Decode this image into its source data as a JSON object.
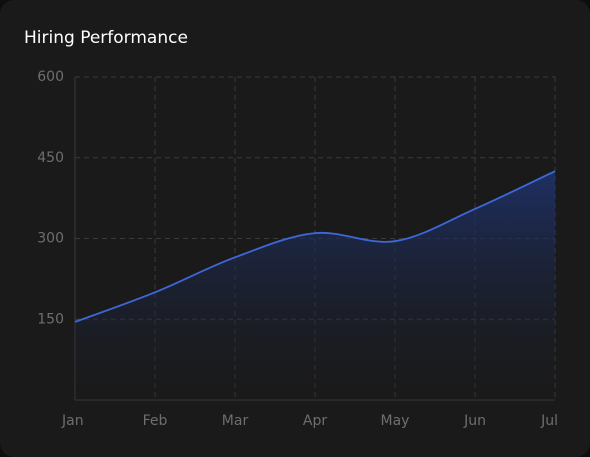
{
  "chart_data": {
    "type": "line",
    "title": "Hiring Performance",
    "categories": [
      "Jan",
      "Feb",
      "Mar",
      "Apr",
      "May",
      "Jun",
      "Jul"
    ],
    "values": [
      145,
      200,
      265,
      310,
      295,
      355,
      425
    ],
    "color": "#3d68d8",
    "ylim": [
      0,
      600
    ],
    "yticks": [
      150,
      300,
      450,
      600
    ],
    "grid": true
  }
}
